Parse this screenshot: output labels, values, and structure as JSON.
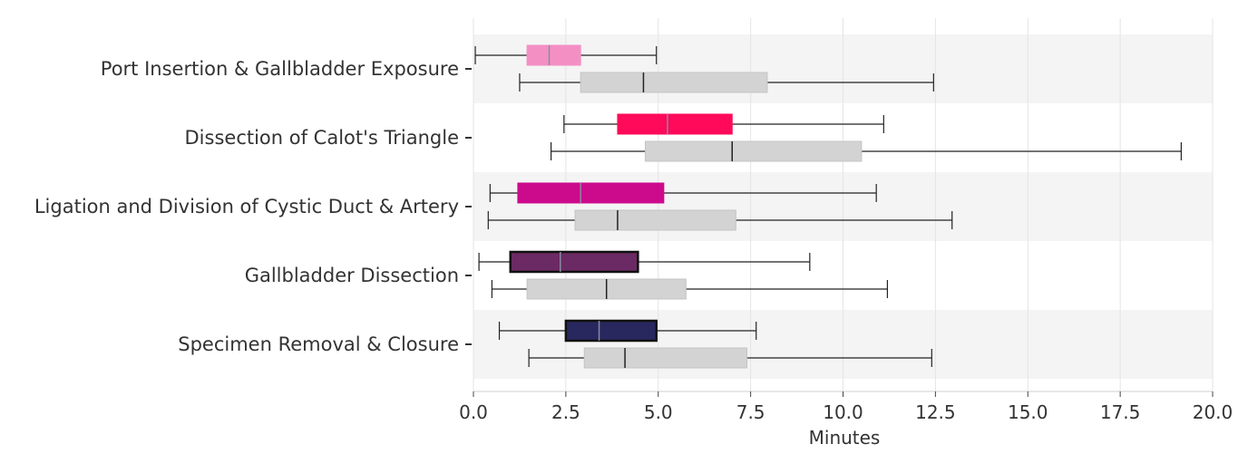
{
  "chart_data": {
    "type": "boxplot",
    "orientation": "horizontal",
    "xlabel": "Minutes",
    "xlim": [
      0,
      20
    ],
    "xticks": [
      "0.0",
      "2.5",
      "5.0",
      "7.5",
      "10.0",
      "12.5",
      "15.0",
      "17.5",
      "20.0"
    ],
    "xtick_values": [
      0,
      2.5,
      5,
      7.5,
      10,
      12.5,
      15,
      17.5,
      20
    ],
    "grid": true,
    "categories": [
      "Port Insertion & Gallbladder Exposure",
      "Dissection of Calot's Triangle",
      "Ligation and Division of Cystic Duct & Artery",
      "Gallbladder Dissection",
      "Specimen Removal & Closure"
    ],
    "series": [
      {
        "colors": [
          "#f48fc4",
          "#ff0a5a",
          "#cc0a8c",
          "#6b2a63",
          "#28275e"
        ],
        "boxes": [
          {
            "whisker_low": 0.05,
            "q1": 1.45,
            "median": 2.05,
            "q3": 2.9,
            "whisker_high": 4.95
          },
          {
            "whisker_low": 2.45,
            "q1": 3.9,
            "median": 5.25,
            "q3": 7.0,
            "whisker_high": 11.1
          },
          {
            "whisker_low": 0.45,
            "q1": 1.2,
            "median": 2.9,
            "q3": 5.15,
            "whisker_high": 10.9
          },
          {
            "whisker_low": 0.15,
            "q1": 1.0,
            "median": 2.35,
            "q3": 4.45,
            "whisker_high": 9.1
          },
          {
            "whisker_low": 0.7,
            "q1": 2.5,
            "median": 3.4,
            "q3": 4.95,
            "whisker_high": 7.65
          }
        ]
      },
      {
        "colors": [
          "#d3d3d3",
          "#d3d3d3",
          "#d3d3d3",
          "#d3d3d3",
          "#d3d3d3"
        ],
        "boxes": [
          {
            "whisker_low": 1.25,
            "q1": 2.9,
            "median": 4.6,
            "q3": 7.95,
            "whisker_high": 12.45
          },
          {
            "whisker_low": 2.1,
            "q1": 4.65,
            "median": 7.0,
            "q3": 10.5,
            "whisker_high": 19.15
          },
          {
            "whisker_low": 0.4,
            "q1": 2.75,
            "median": 3.9,
            "q3": 7.1,
            "whisker_high": 12.95
          },
          {
            "whisker_low": 0.5,
            "q1": 1.45,
            "median": 3.6,
            "q3": 5.75,
            "whisker_high": 11.2
          },
          {
            "whisker_low": 1.5,
            "q1": 3.0,
            "median": 4.1,
            "q3": 7.4,
            "whisker_high": 12.4
          }
        ]
      }
    ]
  }
}
